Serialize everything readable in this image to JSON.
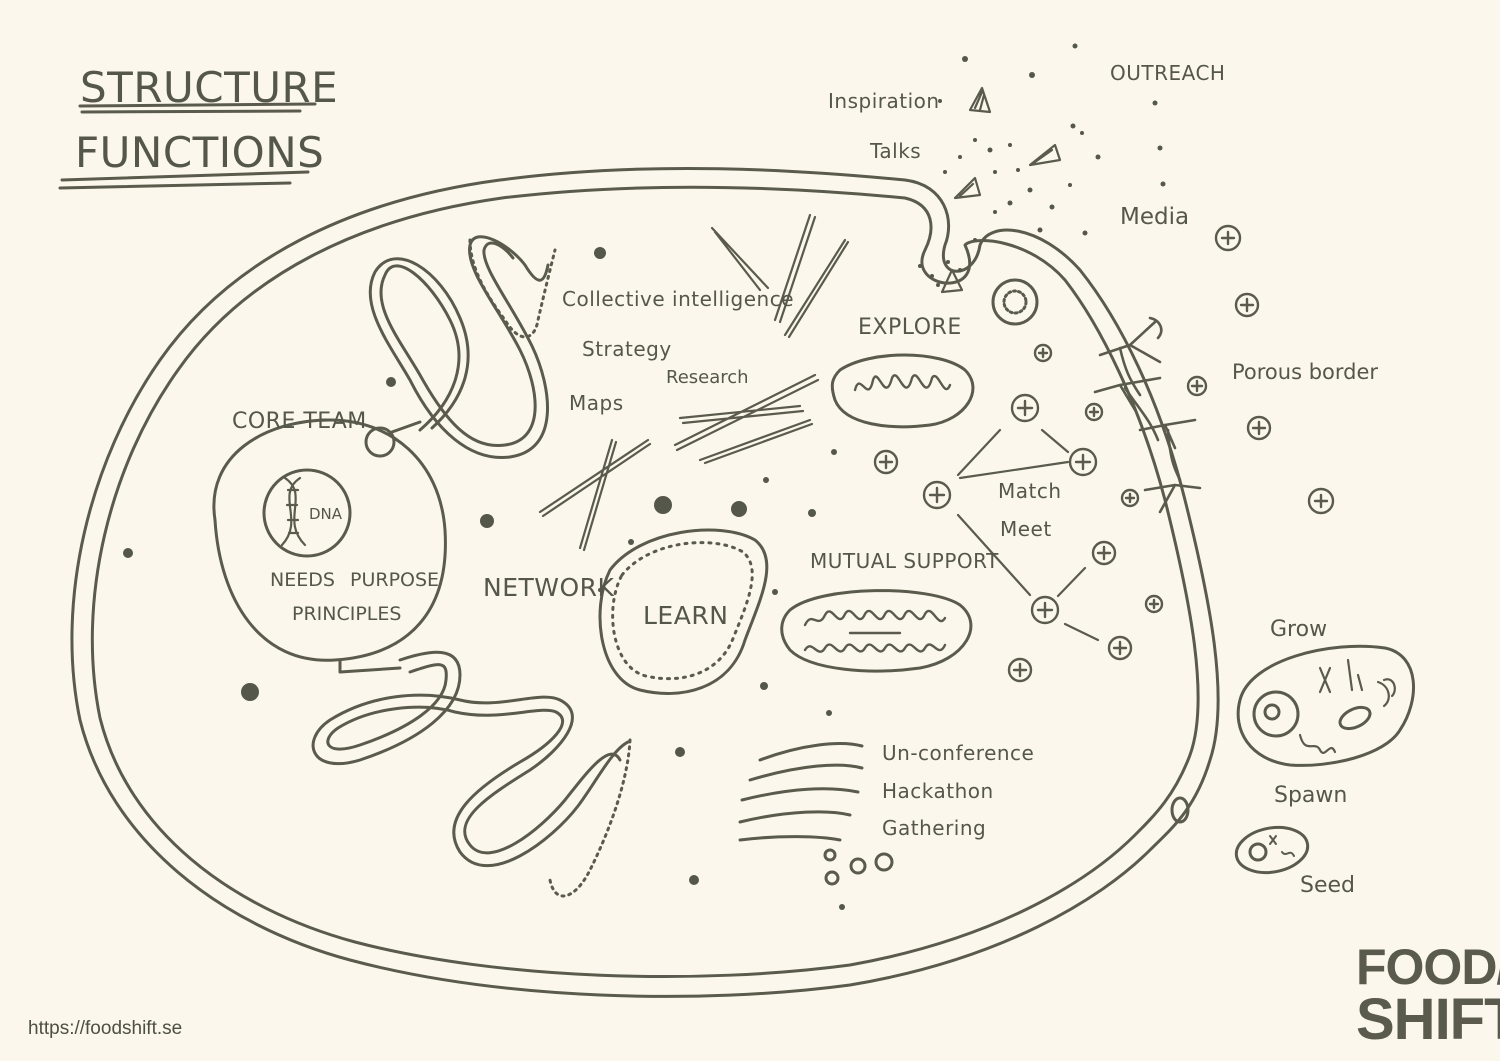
{
  "title": {
    "line1": "STRUCTURE",
    "line2": "FUNCTIONS"
  },
  "labels": {
    "core_team": "CORE TEAM",
    "dna": "DNA",
    "needs": "NEEDS",
    "purpose": "PURPOSE",
    "principles": "PRINCIPLES",
    "network": "NETWORK",
    "learn": "LEARN",
    "collective_intelligence": "Collective intelligence",
    "strategy": "Strategy",
    "research": "Research",
    "maps": "Maps",
    "explore": "EXPLORE",
    "mutual_support": "MUTUAL SUPPORT",
    "match": "Match",
    "meet": "Meet",
    "un_conference": "Un-conference",
    "hackathon": "Hackathon",
    "gathering": "Gathering",
    "inspiration": "Inspiration",
    "talks": "Talks",
    "outreach": "OUTREACH",
    "media": "Media",
    "porous_border": "Porous border",
    "grow": "Grow",
    "spawn": "Spawn",
    "seed": "Seed"
  },
  "footer": {
    "url": "https://foodshift.se",
    "logo_line1": "FOOD//",
    "logo_line2": "SHIFT"
  },
  "colors": {
    "background": "#fbf7ec",
    "ink": "#55574a"
  }
}
